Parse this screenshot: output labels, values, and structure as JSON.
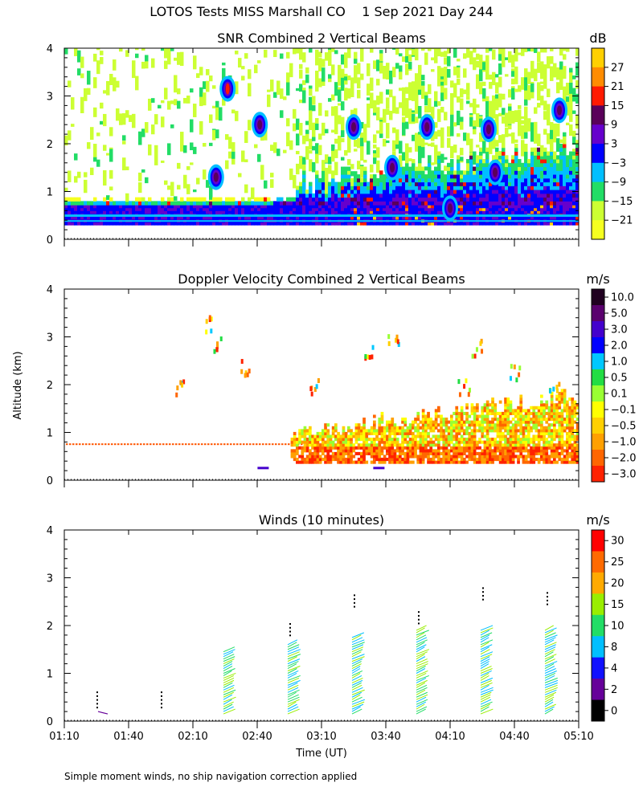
{
  "figure_title": "LOTOS Tests MISS Marshall CO    1 Sep 2021 Day 244",
  "shared_ylabel": "Altitude (km)",
  "xlabel": "Time (UT)",
  "footnote": "Simple moment winds, no ship navigation correction applied",
  "x_ticks": [
    "01:10",
    "01:40",
    "02:10",
    "02:40",
    "03:10",
    "03:40",
    "04:10",
    "04:40",
    "05:10"
  ],
  "y_ticks": [
    "0",
    "1",
    "2",
    "3",
    "4"
  ],
  "chart_data": [
    {
      "type": "heatmap",
      "title": "SNR Combined 2 Vertical Beams",
      "x_range_hours": [
        1.1667,
        5.1667
      ],
      "ylim": [
        0,
        4
      ],
      "colorbar": {
        "unit": "dB",
        "labels": [
          "27",
          "21",
          "15",
          "9",
          "3",
          "−3",
          "−9",
          "−15",
          "−21"
        ],
        "colors": [
          "#ffd000",
          "#ff8c00",
          "#ff1a00",
          "#5a005a",
          "#6600cc",
          "#0000ff",
          "#00bfff",
          "#22dd66",
          "#ccff33",
          "#f5ff20"
        ]
      },
      "description_profile": {
        "strong_return_layer_km": [
          0.3,
          0.7
        ],
        "layer_top_growth_km": [
          0.75,
          1.7
        ],
        "scattered_echo_max_km": 4.0
      }
    },
    {
      "type": "heatmap",
      "title": "Doppler Velocity Combined 2 Vertical Beams",
      "x_range_hours": [
        1.1667,
        5.1667
      ],
      "ylim": [
        0,
        4
      ],
      "colorbar": {
        "unit": "m/s",
        "labels": [
          "10.0",
          "5.0",
          "3.0",
          "2.0",
          "1.0",
          "0.5",
          "0.1",
          "−0.1",
          "−0.5",
          "−1.0",
          "−2.0",
          "−3.0"
        ],
        "colors": [
          "#200020",
          "#5a006e",
          "#4400cc",
          "#0000ff",
          "#00c8ff",
          "#22dd44",
          "#99ff33",
          "#ffff00",
          "#ffd000",
          "#ffa000",
          "#ff6600",
          "#ff2200"
        ]
      }
    },
    {
      "type": "wind_barbs",
      "title": "Winds (10 minutes)",
      "interval_minutes": 10,
      "ylim": [
        0,
        4
      ],
      "profile_times": [
        "01:25",
        "01:55",
        "02:25",
        "02:55",
        "03:25",
        "03:55",
        "04:25",
        "04:55"
      ],
      "colorbar": {
        "unit": "m/s",
        "labels": [
          "30",
          "25",
          "20",
          "15",
          "10",
          "8",
          "4",
          "2",
          "0"
        ],
        "colors": [
          "#ff0000",
          "#ff6a00",
          "#ffaa00",
          "#99ee00",
          "#22dd66",
          "#00bfff",
          "#1010ff",
          "#660099",
          "#000000"
        ]
      }
    }
  ]
}
